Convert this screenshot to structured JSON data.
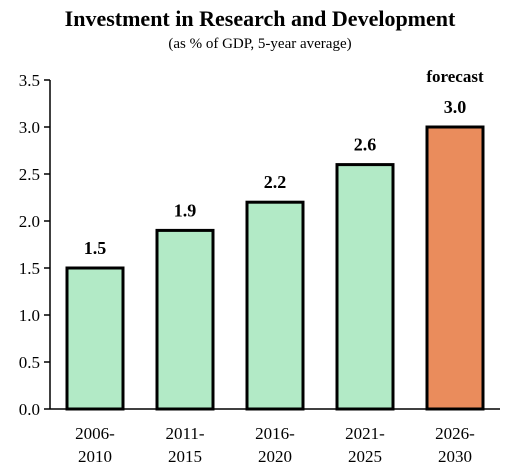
{
  "chart_data": {
    "type": "bar",
    "title": "Investment in Research and Development",
    "subtitle": "(as % of GDP, 5-year average)",
    "categories": [
      [
        "2006-",
        "2010"
      ],
      [
        "2011-",
        "2015"
      ],
      [
        "2016-",
        "2020"
      ],
      [
        "2021-",
        "2025"
      ],
      [
        "2026-",
        "2030"
      ]
    ],
    "values": [
      1.5,
      1.9,
      2.2,
      2.6,
      3.0
    ],
    "value_labels": [
      "1.5",
      "1.9",
      "2.2",
      "2.6",
      "3.0"
    ],
    "ylim": [
      0,
      3.5
    ],
    "yticks": [
      "0.0",
      "0.5",
      "1.0",
      "1.5",
      "2.0",
      "2.5",
      "3.0",
      "3.5"
    ],
    "annotation": "forecast",
    "colors": {
      "actual": "#b2eac6",
      "forecast": "#ea8c5c",
      "outline": "#000000"
    },
    "grid": false
  }
}
